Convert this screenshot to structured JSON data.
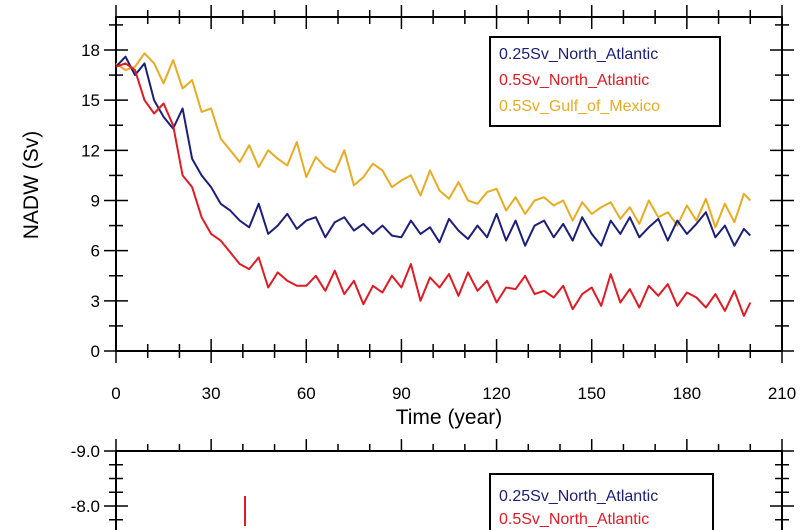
{
  "chart_data": [
    {
      "type": "line",
      "xlabel": "Time (year)",
      "ylabel": "NADW (Sv)",
      "xlim": [
        0,
        210
      ],
      "ylim": [
        0,
        20
      ],
      "xticks": [
        "0",
        "30",
        "60",
        "90",
        "120",
        "150",
        "180",
        "210"
      ],
      "yticks": [
        "0",
        "3",
        "6",
        "9",
        "12",
        "15",
        "18"
      ],
      "grid": false,
      "legend_position": "top-right",
      "x": [
        0,
        3,
        6,
        9,
        12,
        15,
        18,
        21,
        24,
        27,
        30,
        33,
        36,
        39,
        42,
        45,
        48,
        51,
        54,
        57,
        60,
        63,
        66,
        69,
        72,
        75,
        78,
        81,
        84,
        87,
        90,
        93,
        96,
        99,
        102,
        105,
        108,
        111,
        114,
        117,
        120,
        123,
        126,
        129,
        132,
        135,
        138,
        141,
        144,
        147,
        150,
        153,
        156,
        159,
        162,
        165,
        168,
        171,
        174,
        177,
        180,
        183,
        186,
        189,
        192,
        195,
        198,
        200
      ],
      "series": [
        {
          "name": "0.25Sv_North_Atlantic",
          "color": "#1b1f7a",
          "values": [
            17,
            17.6,
            16.5,
            17.2,
            15,
            14,
            13.3,
            14.5,
            11.5,
            10.5,
            9.8,
            8.8,
            8.4,
            7.8,
            7.4,
            8.8,
            7,
            7.5,
            8.2,
            7.3,
            7.8,
            8.0,
            6.8,
            7.7,
            8.0,
            7.2,
            7.6,
            7.0,
            7.5,
            6.9,
            6.8,
            7.8,
            7.0,
            7.4,
            6.5,
            7.9,
            7.2,
            6.7,
            7.5,
            6.8,
            8.2,
            6.6,
            7.8,
            6.3,
            7.5,
            7.8,
            6.8,
            7.6,
            6.6,
            8.0,
            7.0,
            6.3,
            7.8,
            7.0,
            8.0,
            6.8,
            7.4,
            7.9,
            6.6,
            7.8,
            7.0,
            7.6,
            8.3,
            6.8,
            7.5,
            6.3,
            7.3,
            6.9
          ]
        },
        {
          "name": "0.5Sv_North_Atlantic",
          "color": "#e01b24",
          "values": [
            17,
            17.2,
            16.8,
            15,
            14.2,
            14.8,
            13.5,
            10.5,
            9.8,
            8.0,
            7.0,
            6.6,
            5.9,
            5.2,
            4.9,
            5.6,
            3.8,
            4.7,
            4.2,
            3.9,
            3.9,
            4.5,
            3.6,
            4.8,
            3.4,
            4.2,
            2.8,
            3.9,
            3.5,
            4.5,
            3.8,
            5.2,
            3.0,
            4.4,
            3.8,
            4.6,
            3.3,
            4.7,
            3.6,
            4.2,
            2.9,
            3.8,
            3.7,
            4.5,
            3.4,
            3.6,
            3.2,
            3.9,
            2.5,
            3.4,
            3.8,
            2.7,
            4.6,
            2.9,
            3.7,
            2.6,
            3.9,
            3.3,
            4.0,
            2.7,
            3.5,
            3.2,
            2.6,
            3.4,
            2.4,
            3.6,
            2.1,
            2.9
          ]
        },
        {
          "name": "0.5Sv_Gulf_of_Mexico",
          "color": "#e9ab22",
          "values": [
            17.2,
            16.8,
            17.0,
            17.8,
            17.2,
            16.0,
            17.4,
            15.7,
            16.2,
            14.3,
            14.5,
            12.7,
            12.0,
            11.3,
            12.3,
            11.0,
            12.0,
            11.5,
            11.1,
            12.5,
            10.4,
            11.6,
            11.0,
            10.7,
            12.0,
            9.9,
            10.4,
            11.2,
            10.8,
            9.8,
            10.2,
            10.5,
            9.3,
            10.8,
            9.6,
            9.1,
            10.1,
            9.0,
            8.8,
            9.5,
            9.7,
            8.4,
            9.2,
            8.2,
            9.0,
            9.2,
            8.7,
            9.0,
            7.8,
            8.9,
            8.2,
            8.6,
            8.9,
            7.9,
            8.6,
            7.6,
            9.0,
            8.0,
            8.3,
            7.5,
            8.7,
            7.8,
            9.1,
            7.4,
            8.8,
            7.7,
            9.4,
            9.0
          ]
        }
      ]
    },
    {
      "type": "line",
      "yticks": [
        "-9.0",
        "-8.0"
      ],
      "legend_position": "top-right",
      "series": [
        {
          "name": "0.25Sv_North_Atlantic",
          "color": "#1b1f7a"
        },
        {
          "name": "0.5Sv_North_Atlantic",
          "color": "#e01b24"
        }
      ]
    }
  ]
}
